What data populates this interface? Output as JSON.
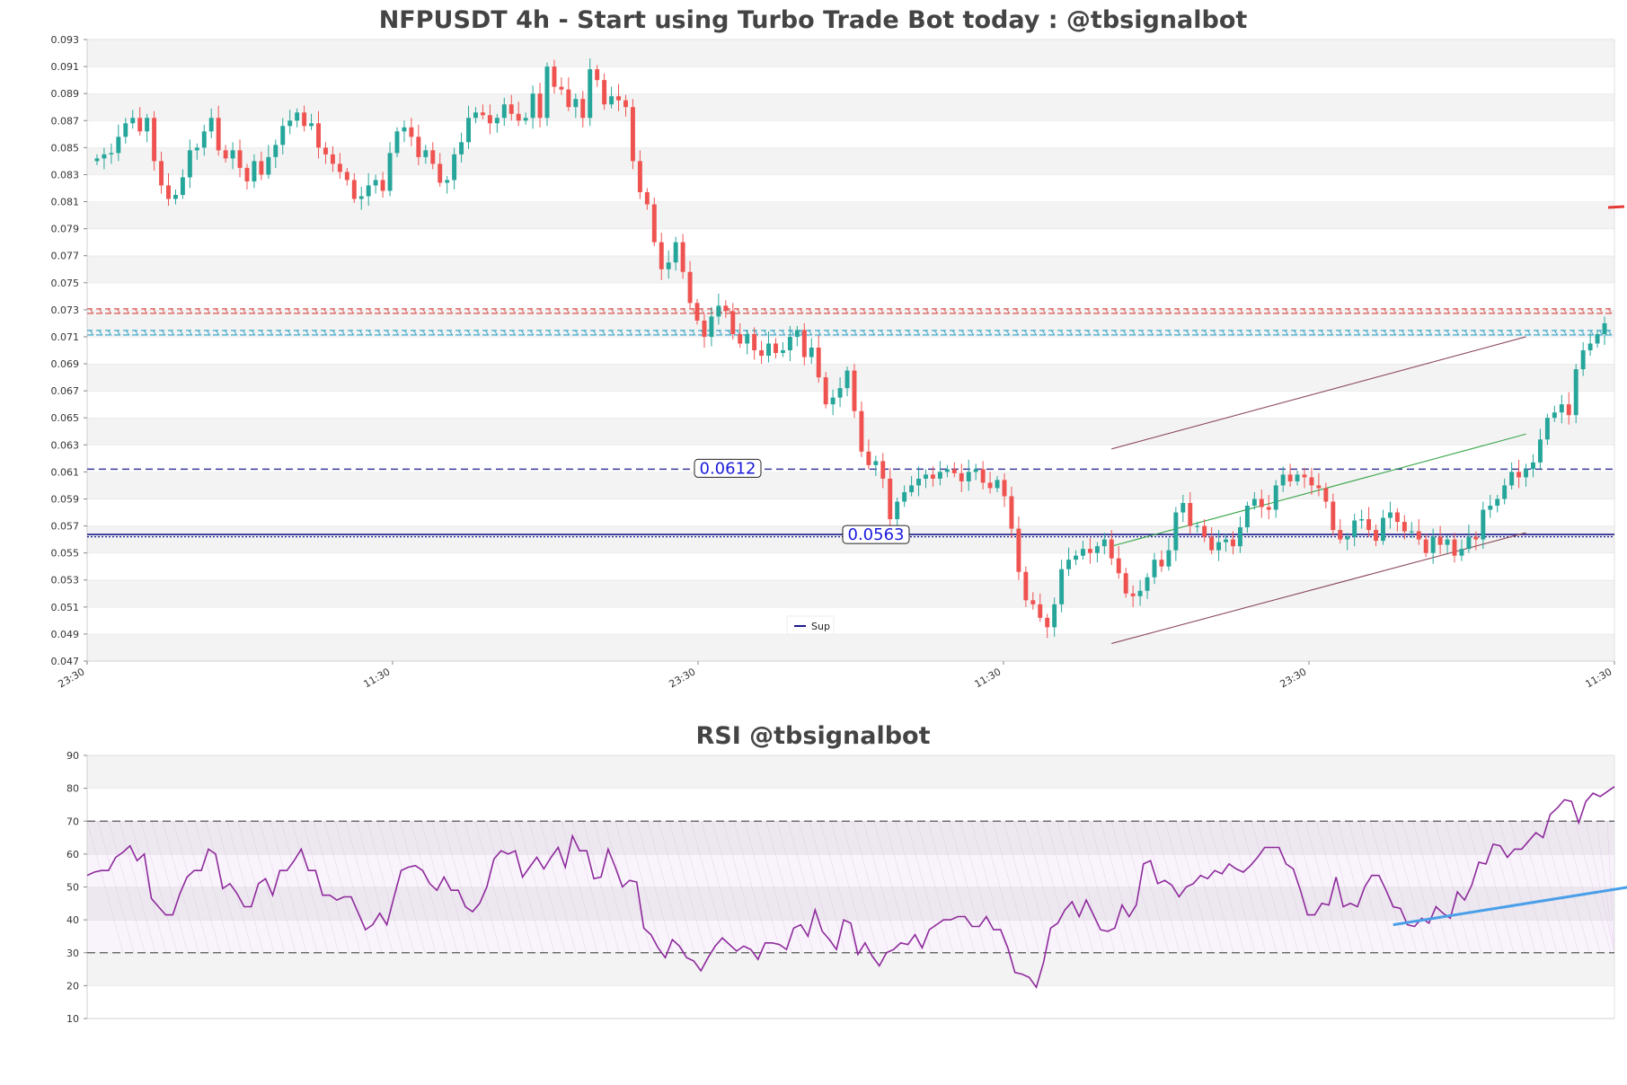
{
  "chart_data": [
    {
      "type": "candlestick",
      "title": "NFPUSDT 4h - Start using Turbo Trade Bot today : @tbsignalbot",
      "ylim": [
        0.047,
        0.093
      ],
      "yticks": [
        "0.047",
        "0.049",
        "0.051",
        "0.053",
        "0.055",
        "0.057",
        "0.059",
        "0.061",
        "0.063",
        "0.065",
        "0.067",
        "0.069",
        "0.071",
        "0.073",
        "0.075",
        "0.077",
        "0.079",
        "0.081",
        "0.083",
        "0.085",
        "0.087",
        "0.089",
        "0.091",
        "0.093"
      ],
      "xticks": [
        "23:30",
        "11:30",
        "23:30",
        "11:30",
        "23:30",
        "11:30"
      ],
      "grid": "horizontal bands",
      "legend": {
        "placement": "lower-center",
        "entries": [
          "Sup"
        ]
      },
      "levels": [
        {
          "value": 0.0729,
          "style": "dotted-marker",
          "color": "#d9534f"
        },
        {
          "value": 0.0713,
          "style": "dotted-marker",
          "color": "#2aa2c8"
        },
        {
          "value": 0.0612,
          "style": "dashed",
          "color": "#3b3b9e",
          "label": "0.0612"
        },
        {
          "value": 0.0563,
          "style": "solid",
          "color": "#1a1a8c",
          "label": "0.0563"
        }
      ],
      "trendlines": [
        {
          "from": [
            142,
            0.0627
          ],
          "to": [
            200,
            0.071
          ],
          "color": "#8b4a5a"
        },
        {
          "from": [
            142,
            0.0483
          ],
          "to": [
            200,
            0.0565
          ],
          "color": "#8b4a5a"
        },
        {
          "from": [
            142,
            0.0555
          ],
          "to": [
            200,
            0.0638
          ],
          "color": "#3aa64a"
        }
      ],
      "closes": [
        0.0842,
        0.0845,
        0.0846,
        0.0858,
        0.0868,
        0.0872,
        0.0862,
        0.0872,
        0.084,
        0.0822,
        0.0812,
        0.0815,
        0.0828,
        0.0848,
        0.085,
        0.0862,
        0.0872,
        0.0848,
        0.0842,
        0.0848,
        0.0835,
        0.0825,
        0.084,
        0.083,
        0.0843,
        0.0852,
        0.0866,
        0.087,
        0.0876,
        0.0866,
        0.0868,
        0.085,
        0.0845,
        0.0838,
        0.0832,
        0.0826,
        0.0812,
        0.0814,
        0.0822,
        0.0826,
        0.0818,
        0.0846,
        0.0862,
        0.0865,
        0.0858,
        0.0843,
        0.0848,
        0.0838,
        0.0824,
        0.0826,
        0.0845,
        0.0854,
        0.0872,
        0.0876,
        0.0874,
        0.0868,
        0.0872,
        0.0882,
        0.0875,
        0.087,
        0.0872,
        0.089,
        0.0872,
        0.091,
        0.0895,
        0.0893,
        0.088,
        0.0886,
        0.0872,
        0.0908,
        0.09,
        0.0882,
        0.0888,
        0.0885,
        0.088,
        0.084,
        0.0817,
        0.0808,
        0.078,
        0.076,
        0.0765,
        0.078,
        0.0758,
        0.0735,
        0.0722,
        0.071,
        0.0725,
        0.0733,
        0.0729,
        0.0712,
        0.0705,
        0.0712,
        0.07,
        0.0696,
        0.0705,
        0.0698,
        0.07,
        0.071,
        0.0715,
        0.0695,
        0.0702,
        0.068,
        0.066,
        0.0665,
        0.0672,
        0.0685,
        0.0655,
        0.0625,
        0.0615,
        0.0618,
        0.0605,
        0.0575,
        0.0588,
        0.0595,
        0.06,
        0.0605,
        0.0608,
        0.0605,
        0.061,
        0.0612,
        0.0609,
        0.0603,
        0.061,
        0.0612,
        0.0602,
        0.0598,
        0.0604,
        0.0592,
        0.0568,
        0.0536,
        0.0515,
        0.0512,
        0.0502,
        0.0495,
        0.0512,
        0.0538,
        0.0545,
        0.0548,
        0.0553,
        0.055,
        0.0555,
        0.056,
        0.0546,
        0.0535,
        0.052,
        0.0518,
        0.0522,
        0.0532,
        0.0545,
        0.054,
        0.0552,
        0.058,
        0.0587,
        0.057,
        0.057,
        0.0562,
        0.0552,
        0.0558,
        0.056,
        0.0555,
        0.0569,
        0.0585,
        0.059,
        0.0584,
        0.0582,
        0.06,
        0.0608,
        0.0603,
        0.0608,
        0.0606,
        0.06,
        0.0598,
        0.0588,
        0.0567,
        0.056,
        0.0562,
        0.0574,
        0.0575,
        0.0567,
        0.0559,
        0.0576,
        0.058,
        0.0573,
        0.0566,
        0.0566,
        0.056,
        0.055,
        0.0562,
        0.0556,
        0.056,
        0.0548,
        0.0553,
        0.0562,
        0.056,
        0.0582,
        0.0585,
        0.059,
        0.06,
        0.061,
        0.0606,
        0.0612,
        0.0617,
        0.0634,
        0.065,
        0.0654,
        0.066,
        0.0652,
        0.0686,
        0.07,
        0.0705,
        0.0712,
        0.072
      ]
    },
    {
      "type": "line",
      "title": "RSI @tbsignalbot",
      "ylim": [
        10,
        90
      ],
      "yticks": [
        "10",
        "20",
        "30",
        "40",
        "50",
        "60",
        "70",
        "80",
        "90"
      ],
      "levels": [
        70,
        30
      ],
      "series": [
        {
          "color": "#8e2a9c",
          "values": [
            53.5,
            54.5,
            55.0,
            55.0,
            59.0,
            60.5,
            62.5,
            58.0,
            60.0,
            46.5,
            44.0,
            41.5,
            41.5,
            48.0,
            53.0,
            55.0,
            55.0,
            61.5,
            60.0,
            49.5,
            51.0,
            48.0,
            44.0,
            44.0,
            51.0,
            52.5,
            47.5,
            55.0,
            55.0,
            58.0,
            61.5,
            55.0,
            55.0,
            47.5,
            47.5,
            46.0,
            47.0,
            47.0,
            42.0,
            37.0,
            38.5,
            42.0,
            38.5,
            47.0,
            55.0,
            56.0,
            56.5,
            55.0,
            51.0,
            49.0,
            53.0,
            49.0,
            49.0,
            44.0,
            42.5,
            45.0,
            50.0,
            58.5,
            61.0,
            60.0,
            61.0,
            53.0,
            56.0,
            59.0,
            55.5,
            59.0,
            62.0,
            56.0,
            65.5,
            61.0,
            61.0,
            52.5,
            53.0,
            61.5,
            56.0,
            50.0,
            52.0,
            51.5,
            37.5,
            35.5,
            31.5,
            28.5,
            34.0,
            32.0,
            28.5,
            27.5,
            24.5,
            28.5,
            32.0,
            34.5,
            32.5,
            30.5,
            32.0,
            31.0,
            28.0,
            33.0,
            33.0,
            32.5,
            31.0,
            37.5,
            38.5,
            35.0,
            43.0,
            36.5,
            34.0,
            31.0,
            40.0,
            39.0,
            29.5,
            33.0,
            29.0,
            26.0,
            30.0,
            31.0,
            33.0,
            32.5,
            35.5,
            31.5,
            37.0,
            38.5,
            40.0,
            40.0,
            41.0,
            41.0,
            38.0,
            38.0,
            41.0,
            37.0,
            37.0,
            31.5,
            24.0,
            23.5,
            22.5,
            19.5,
            27.0,
            37.5,
            39.0,
            43.0,
            45.5,
            41.0,
            46.0,
            41.5,
            37.0,
            36.5,
            37.5,
            44.5,
            41.0,
            44.5,
            57.0,
            58.0,
            51.0,
            52.0,
            50.5,
            47.0,
            50.0,
            51.0,
            53.5,
            52.5,
            55.0,
            54.0,
            57.0,
            55.5,
            54.5,
            56.5,
            59.0,
            62.0,
            62.0,
            62.0,
            57.0,
            55.5,
            49.0,
            41.5,
            41.5,
            45.0,
            44.5,
            53.0,
            44.0,
            45.0,
            44.0,
            50.0,
            53.5,
            53.5,
            49.0,
            44.0,
            43.5,
            38.5,
            38.0,
            40.5,
            39.0,
            44.0,
            42.0,
            40.5,
            48.5,
            46.0,
            50.5,
            57.5,
            57.0,
            63.0,
            62.5,
            59.0,
            61.5,
            61.5,
            64.0,
            66.5,
            65.0,
            72.0,
            74.0,
            76.5,
            76.0,
            69.5,
            76.0,
            78.5,
            77.5,
            79.0,
            80.5
          ]
        }
      ],
      "trendline": {
        "from": [
          183,
          38.5
        ],
        "to": [
          219,
          51.0
        ],
        "color": "#4a9fe8"
      }
    }
  ]
}
